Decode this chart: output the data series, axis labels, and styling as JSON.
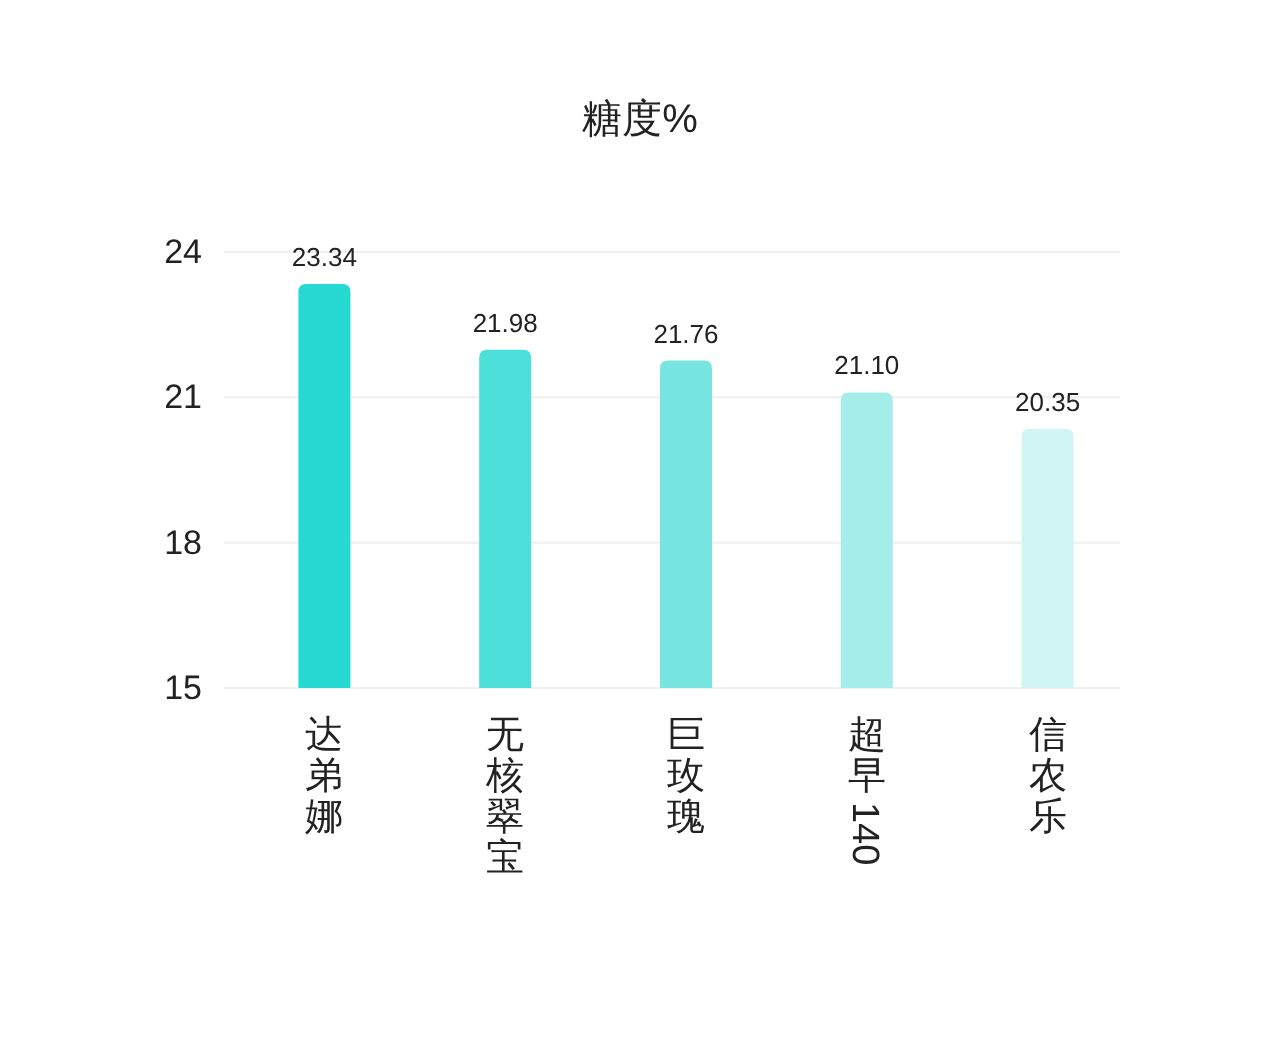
{
  "chart_data": {
    "type": "bar",
    "title": "糖度%",
    "categories": [
      "达弟娜",
      "无核翠宝",
      "巨玫瑰",
      "超早140",
      "信农乐"
    ],
    "values": [
      23.34,
      21.98,
      21.76,
      21.1,
      20.35
    ],
    "colors": [
      "#27d9d3",
      "#4de0da",
      "#77e6e1",
      "#a5ede9",
      "#d0f5f4"
    ],
    "value_labels": [
      "23.34",
      "21.98",
      "21.76",
      "21.10",
      "20.35"
    ],
    "ylim": [
      15,
      24
    ],
    "yticks": [
      15,
      18,
      21,
      24
    ],
    "grid": "y"
  }
}
